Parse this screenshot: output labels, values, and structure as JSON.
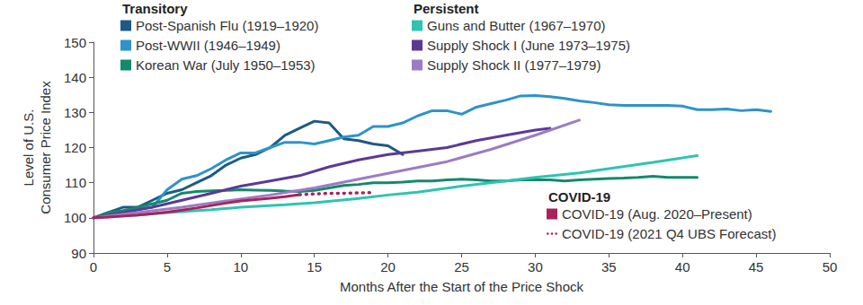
{
  "chart_data": {
    "type": "line",
    "x_label": "Months After the Start of the Price Shock",
    "y_label": [
      "Level of U.S.",
      "Consumer Price Index"
    ],
    "xlim": [
      0,
      50
    ],
    "xticks": [
      0,
      5,
      10,
      15,
      20,
      25,
      30,
      35,
      40,
      45,
      50
    ],
    "ylim": [
      90,
      150
    ],
    "yticks": [
      90,
      100,
      110,
      120,
      130,
      140,
      150
    ],
    "grid": false,
    "marker": "none",
    "groups": [
      "Transitory",
      "Persistent",
      "COVID-19"
    ],
    "series": [
      {
        "name": "Post-Spanish Flu (1919–1920)",
        "group": "Transitory",
        "color": "#1d5a85",
        "line_style": "solid",
        "x": [
          0,
          1,
          2,
          3,
          4,
          5,
          6,
          7,
          8,
          9,
          10,
          11,
          12,
          13,
          14,
          15,
          16,
          17,
          18,
          19,
          20,
          21
        ],
        "values": [
          100,
          101.5,
          103,
          103,
          105,
          107,
          108,
          110,
          112,
          115,
          117,
          118,
          120,
          123.5,
          125.5,
          127.5,
          127,
          122.5,
          122,
          121,
          120.5,
          118
        ]
      },
      {
        "name": "Post-WWII (1946–1949)",
        "group": "Transitory",
        "color": "#2e93c9",
        "line_style": "solid",
        "x": [
          0,
          1,
          2,
          3,
          4,
          5,
          6,
          7,
          8,
          9,
          10,
          11,
          12,
          13,
          14,
          15,
          16,
          17,
          18,
          19,
          20,
          21,
          22,
          23,
          24,
          25,
          26,
          27,
          28,
          29,
          30,
          31,
          32,
          33,
          34,
          35,
          36,
          37,
          38,
          39,
          40,
          41,
          42,
          43,
          44,
          45,
          46
        ],
        "values": [
          100,
          101,
          102,
          102.5,
          103,
          108,
          111,
          112,
          114,
          116.5,
          118.5,
          118.5,
          120,
          121.5,
          121.5,
          121,
          122,
          123,
          123.5,
          126,
          126,
          127,
          129,
          130.5,
          130.5,
          129.5,
          131.5,
          132.5,
          133.5,
          134.7,
          134.8,
          134.5,
          134,
          133.3,
          132.8,
          132.2,
          132,
          132,
          132,
          132,
          131.8,
          130.8,
          130.8,
          131,
          130.5,
          130.8,
          130.3
        ]
      },
      {
        "name": "Korean War (July 1950–1953)",
        "group": "Transitory",
        "color": "#138a6a",
        "line_style": "solid",
        "x": [
          0,
          1,
          2,
          3,
          4,
          5,
          6,
          7,
          8,
          9,
          10,
          11,
          12,
          13,
          14,
          15,
          16,
          17,
          18,
          19,
          20,
          21,
          22,
          23,
          24,
          25,
          26,
          27,
          28,
          29,
          30,
          31,
          32,
          33,
          34,
          35,
          36,
          37,
          38,
          39,
          40,
          41
        ],
        "values": [
          100,
          101.5,
          102,
          103,
          104,
          105,
          107,
          107.5,
          107.7,
          107.8,
          108,
          107.9,
          107.8,
          107.6,
          107.5,
          107.8,
          108.5,
          109.2,
          109.5,
          110,
          110,
          110.2,
          110.5,
          110.5,
          110.8,
          111,
          110.8,
          110.5,
          110.5,
          110.8,
          110.8,
          110.8,
          110.5,
          110.8,
          111,
          111.2,
          111.3,
          111.5,
          111.8,
          111.5,
          111.5,
          111.5
        ]
      },
      {
        "name": "Guns and Butter (1967–1970)",
        "group": "Persistent",
        "color": "#2ec4b0",
        "line_style": "solid",
        "x": [
          0,
          3,
          5,
          8,
          10,
          13,
          15,
          18,
          20,
          22,
          25,
          28,
          30,
          33,
          35,
          38,
          41
        ],
        "values": [
          100,
          100.8,
          101.5,
          102.3,
          103,
          103.7,
          104.3,
          105.5,
          106.5,
          107.3,
          109,
          110.5,
          111.5,
          112.8,
          114,
          115.8,
          117.7
        ]
      },
      {
        "name": "Supply Shock I (June 1973–1975)",
        "group": "Persistent",
        "color": "#5b3a96",
        "line_style": "solid",
        "x": [
          0,
          2,
          4,
          6,
          8,
          10,
          12,
          14,
          16,
          18,
          20,
          22,
          24,
          26,
          28,
          30,
          31
        ],
        "values": [
          100,
          101.5,
          103,
          105,
          107,
          109,
          110.5,
          112,
          114.5,
          116.5,
          118,
          119,
          120,
          122,
          123.5,
          125,
          125.5
        ]
      },
      {
        "name": "Supply Shock II (1977–1979)",
        "group": "Persistent",
        "color": "#9b7cc4",
        "line_style": "solid",
        "x": [
          0,
          3,
          6,
          9,
          12,
          15,
          18,
          21,
          24,
          27,
          30,
          33
        ],
        "values": [
          100,
          101.5,
          103,
          104.8,
          106.5,
          108.5,
          111,
          113.5,
          116,
          119.5,
          123.5,
          127.8
        ]
      },
      {
        "name": "COVID-19 (Aug. 2020–Present)",
        "group": "COVID-19",
        "color": "#a8235b",
        "line_style": "solid",
        "x": [
          0,
          1,
          2,
          3,
          4,
          5,
          6,
          7,
          8,
          9,
          10,
          11,
          12,
          13,
          14
        ],
        "values": [
          100,
          100.2,
          100.5,
          100.8,
          101.2,
          101.6,
          102.2,
          102.8,
          103.5,
          104.2,
          104.8,
          105.2,
          105.6,
          106,
          106.6
        ]
      },
      {
        "name": "COVID-19 (2021 Q4 UBS Forecast)",
        "group": "COVID-19",
        "color": "#a8235b",
        "line_style": "dotted",
        "x": [
          14,
          15,
          16,
          17,
          18,
          19
        ],
        "values": [
          106.6,
          106.8,
          107,
          107,
          107.1,
          107.2
        ]
      }
    ]
  }
}
